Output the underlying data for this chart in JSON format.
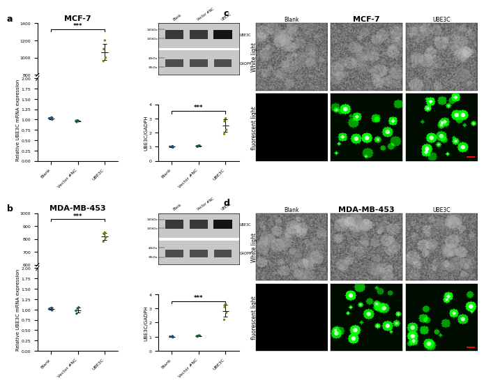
{
  "panel_a_title": "MCF-7",
  "panel_b_title": "MDA-MB-453",
  "panel_c_title": "MCF-7",
  "panel_d_title": "MDA-MB-453",
  "categories": [
    "Blank",
    "Vector #NC",
    "UBE3C"
  ],
  "panel_a_mRNA": {
    "blank_points": [
      1.0,
      1.03,
      1.05,
      1.04
    ],
    "nc_points": [
      0.94,
      0.97,
      0.98,
      0.96
    ],
    "ube3c_points": [
      960,
      1000,
      1100,
      1200
    ],
    "ylim_lower": [
      0,
      2.0
    ],
    "ylim_upper": [
      800,
      1400
    ],
    "ylabel": "Relative UBE3C mRNA expression",
    "sig_text": "***"
  },
  "panel_a_wb": {
    "labels_top": [
      "Blank",
      "Vector #NC",
      "UBE3C"
    ],
    "band_labels_right": [
      "UBE3C",
      "GADPH"
    ],
    "kda_labels_left": [
      "140kDa",
      "100kDa",
      "40kDa",
      "30kDa"
    ],
    "ube3c_band_darkness": [
      0.22,
      0.22,
      0.08
    ],
    "gadph_band_darkness": [
      0.3,
      0.3,
      0.3
    ]
  },
  "panel_a_quant": {
    "blank_points": [
      0.95,
      1.0,
      1.04,
      1.02
    ],
    "nc_points": [
      1.0,
      1.04,
      1.07,
      1.08
    ],
    "ube3c_points": [
      1.9,
      2.2,
      2.8,
      3.0
    ],
    "ylim": [
      0,
      4
    ],
    "ylabel": "UBE3C/GADPH",
    "sig_text": "***"
  },
  "panel_b_mRNA": {
    "blank_points": [
      0.98,
      1.01,
      1.04,
      1.03
    ],
    "nc_points": [
      0.9,
      0.97,
      1.02,
      1.05
    ],
    "ube3c_points": [
      780,
      810,
      840,
      850
    ],
    "ylim_lower": [
      0,
      2.0
    ],
    "ylim_upper": [
      600,
      1000
    ],
    "ylabel": "Relative UBE3C mRNA expression",
    "sig_text": "***"
  },
  "panel_b_quant": {
    "blank_points": [
      0.95,
      1.0,
      1.03,
      1.02
    ],
    "nc_points": [
      1.0,
      1.04,
      1.07,
      1.08
    ],
    "ube3c_points": [
      2.2,
      2.7,
      3.1,
      3.3
    ],
    "ylim": [
      0,
      4
    ],
    "ylabel": "UBE3C/GADPH",
    "sig_text": "***"
  },
  "dot_colors": {
    "blank": "#1f4e79",
    "nc": "#1e5c30",
    "ube3c": "#7f7f00"
  },
  "figure_bg": "#ffffff",
  "label_fontsize": 5.5,
  "title_fontsize": 8,
  "tick_fontsize": 4.5,
  "axis_label_fontsize": 5
}
